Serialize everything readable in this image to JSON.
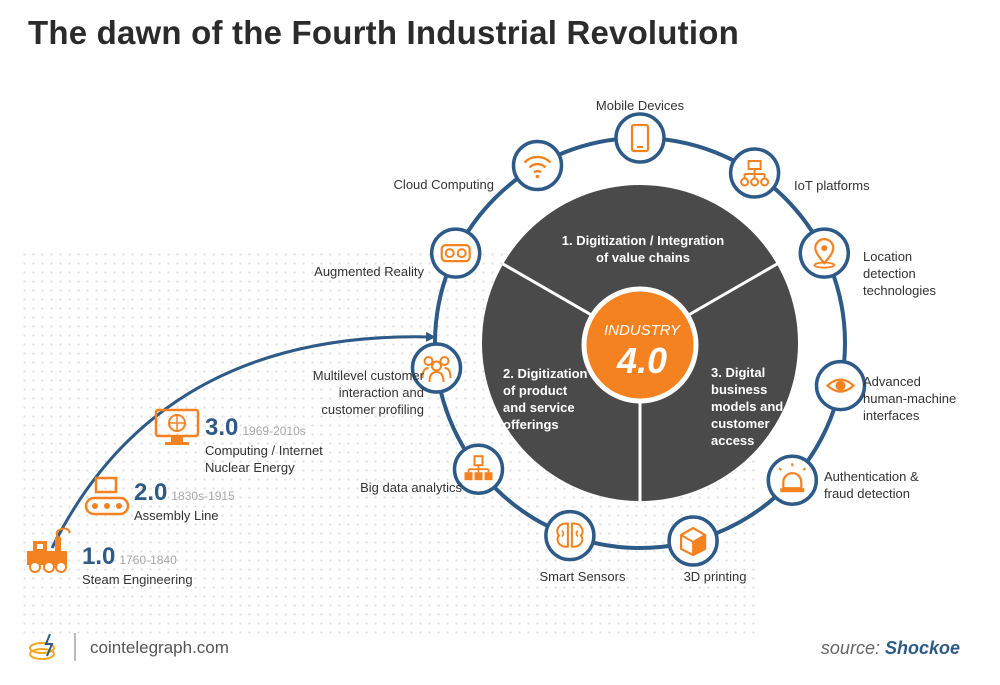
{
  "title": "The dawn of the Fourth Industrial Revolution",
  "center": {
    "line1": "INDUSTRY",
    "line2": "4.0"
  },
  "segments": {
    "top": "1. Digitization / Integration\nof value chains",
    "left": "2. Digitization\nof product\nand service\nofferings",
    "right": "3. Digital\nbusiness\nmodels and\ncustomer\naccess"
  },
  "technologies": [
    {
      "label": "Mobile Devices",
      "icon": "mobile-device-icon"
    },
    {
      "label": "IoT platforms",
      "icon": "iot-platforms-icon"
    },
    {
      "label": "Location\ndetection\ntechnologies",
      "icon": "location-pin-icon"
    },
    {
      "label": "Advanced\nhuman-machine\ninterfaces",
      "icon": "eye-icon"
    },
    {
      "label": "Authentication &\nfraud detection",
      "icon": "alarm-siren-icon"
    },
    {
      "label": "3D printing",
      "icon": "cube-icon"
    },
    {
      "label": "Smart Sensors",
      "icon": "brain-icon"
    },
    {
      "label": "Big data analytics",
      "icon": "data-hierarchy-icon"
    },
    {
      "label": "Multilevel customer\ninteraction and\ncustomer profiling",
      "icon": "people-group-icon"
    },
    {
      "label": "Augmented Reality",
      "icon": "vr-goggles-icon"
    },
    {
      "label": "Cloud Computing",
      "icon": "wifi-signal-icon"
    }
  ],
  "stages": [
    {
      "version": "1.0",
      "years": "1760-1840",
      "desc": "Steam Engineering",
      "icon": "steam-train-icon"
    },
    {
      "version": "2.0",
      "years": "1830s-1915",
      "desc": "Assembly Line",
      "icon": "conveyor-belt-icon"
    },
    {
      "version": "3.0",
      "years": "1969-2010s",
      "desc": "Computing / Internet\nNuclear Energy",
      "icon": "computer-monitor-icon"
    }
  ],
  "footer": {
    "site": "cointelegraph.com",
    "source_prefix": "source:",
    "source_name": "Shockoe"
  },
  "colors": {
    "blue": "#2e5a87",
    "orange": "#f58220",
    "dark": "#4a4a4a",
    "text": "#2b2b2b"
  }
}
